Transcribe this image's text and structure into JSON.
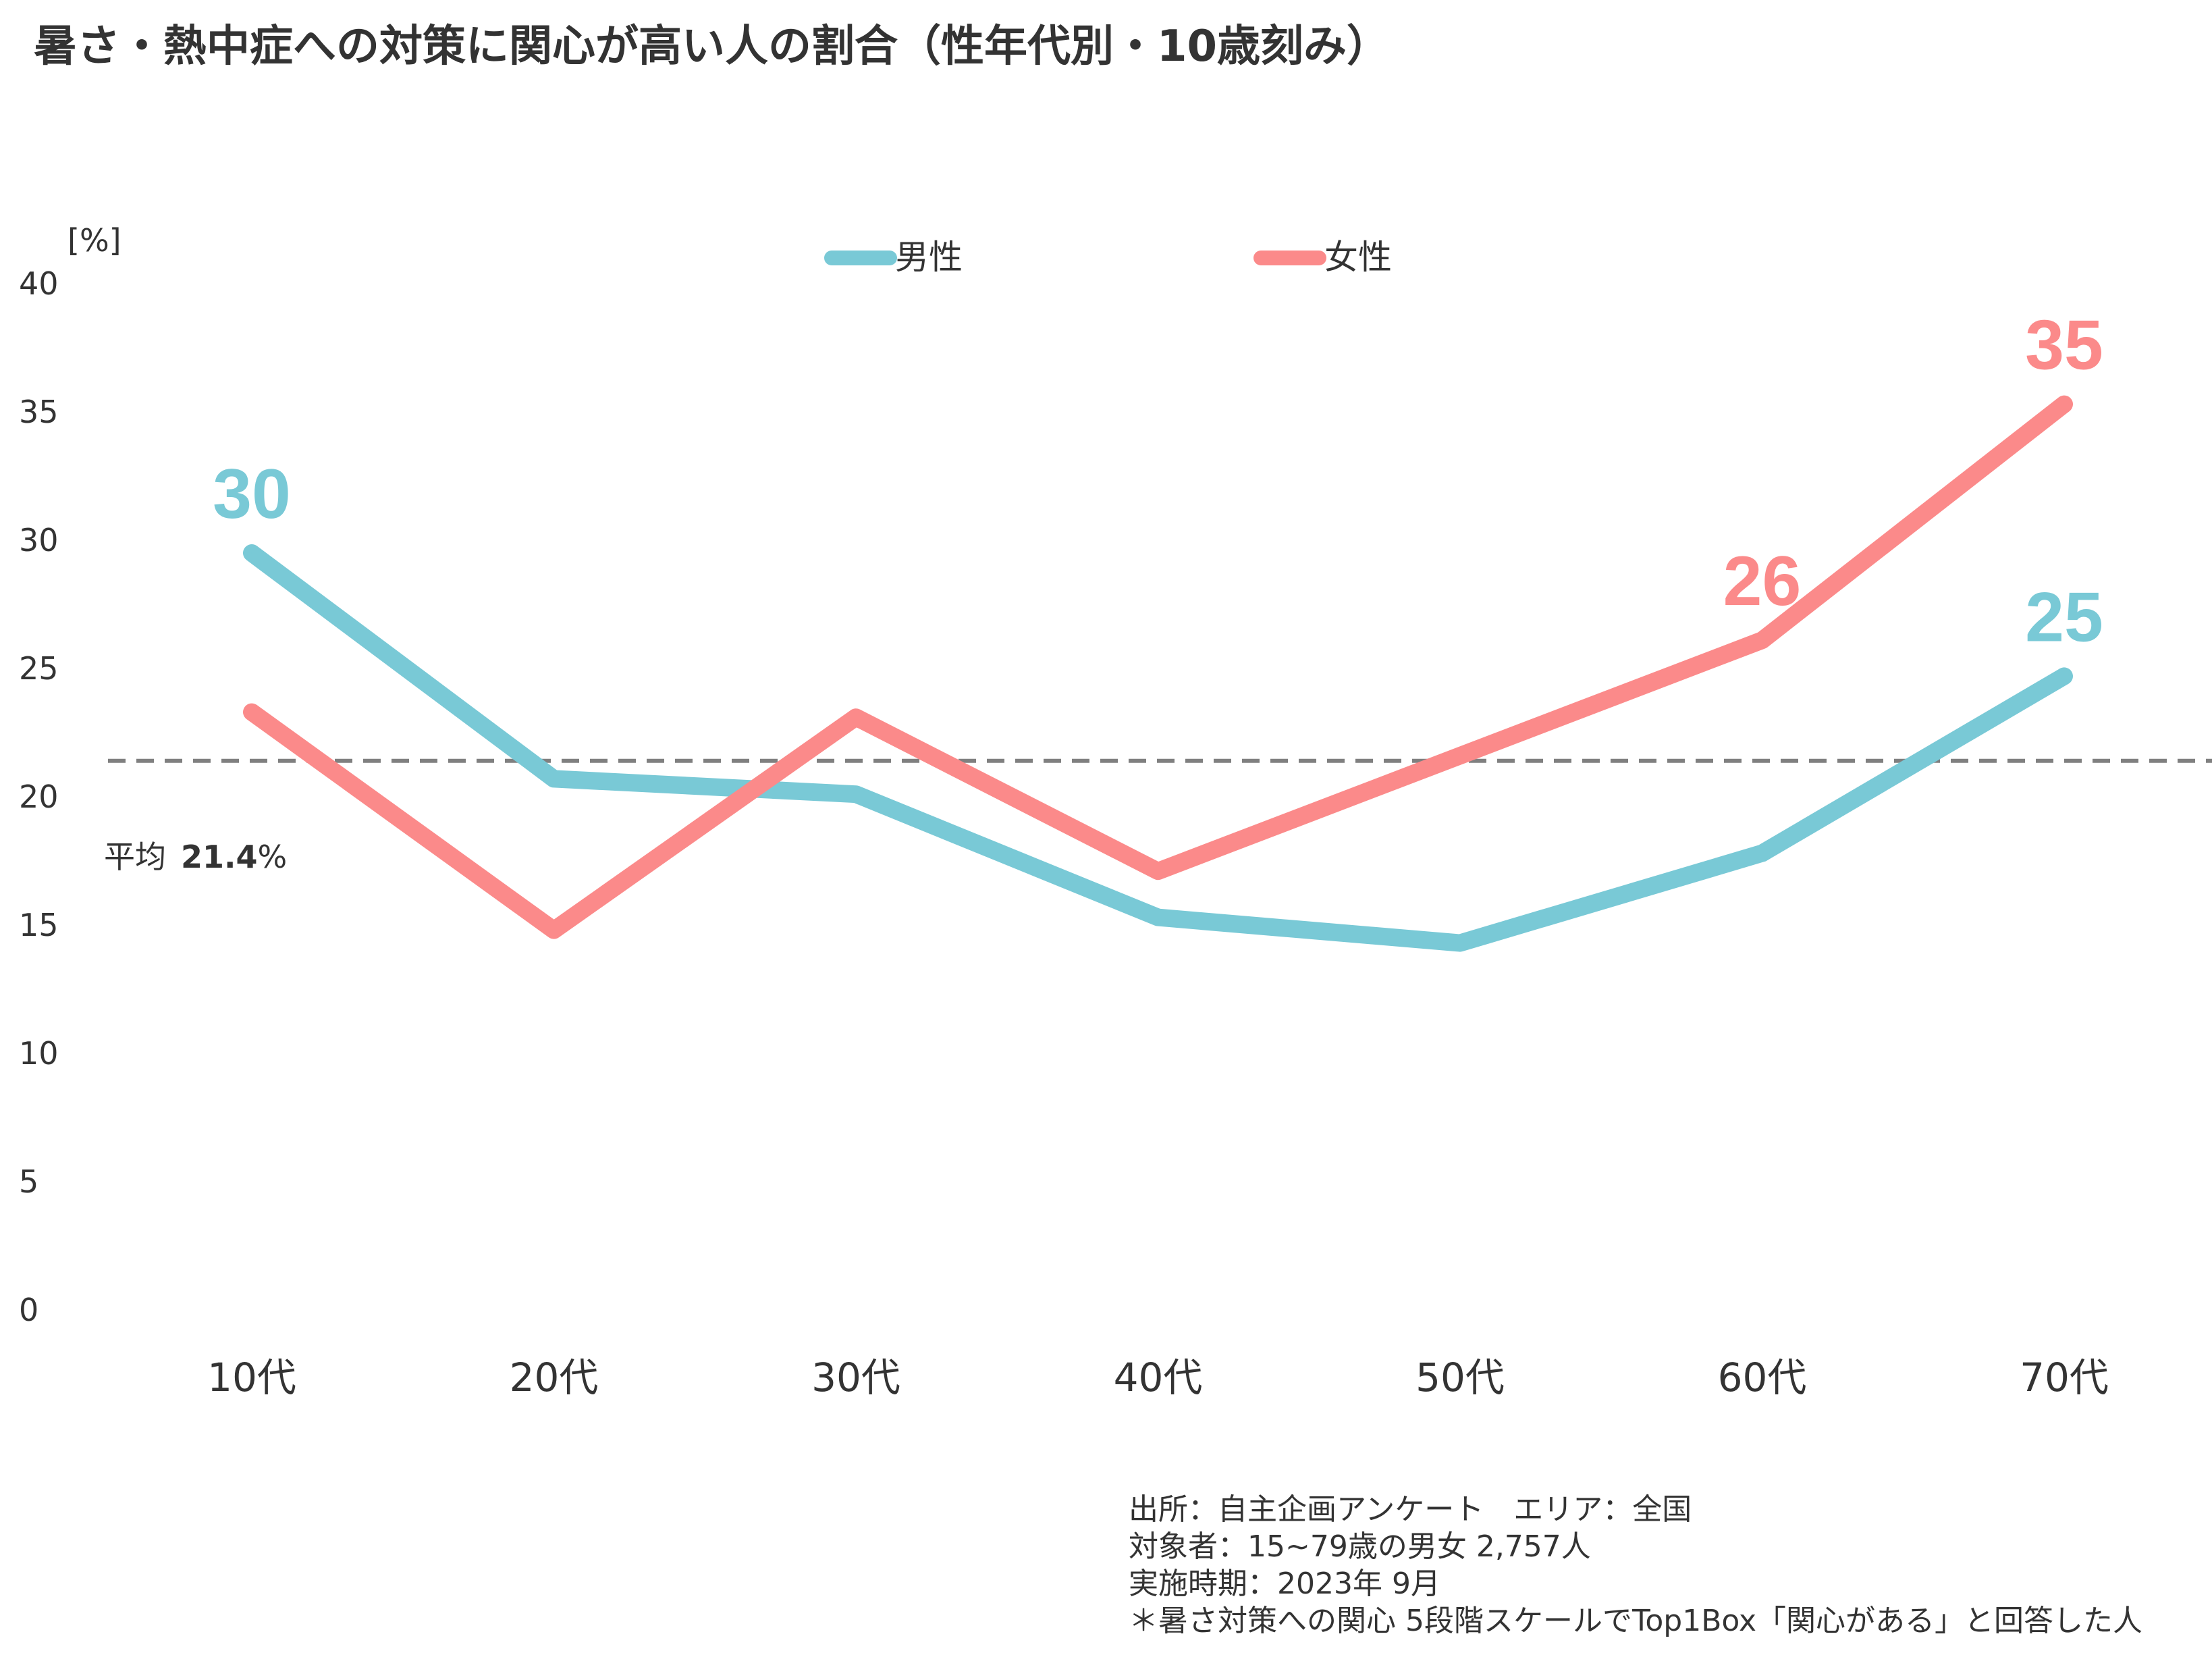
{
  "chart_data": {
    "type": "line",
    "title": "暑さ・熱中症への対策に関心が高い人の割合（性年代別・10歳刻み）",
    "ylabel": "[%]",
    "ylim": [
      0,
      40
    ],
    "yticks": [
      "0",
      "5",
      "10",
      "15",
      "20",
      "25",
      "30",
      "35",
      "40"
    ],
    "categories": [
      "10代",
      "20代",
      "30代",
      "40代",
      "50代",
      "60代",
      "70代"
    ],
    "series": [
      {
        "name": "男性",
        "color": "#79c9d6",
        "values": [
          29.5,
          20.7,
          20.1,
          15.3,
          14.3,
          17.8,
          24.7
        ],
        "labels": [
          "30",
          "",
          "",
          "",
          "",
          "",
          "25"
        ]
      },
      {
        "name": "女性",
        "color": "#fb8a8a",
        "values": [
          23.3,
          14.8,
          23.1,
          17.1,
          21.6,
          26.1,
          35.3
        ],
        "labels": [
          "",
          "",
          "",
          "",
          "",
          "26",
          "35"
        ]
      }
    ],
    "average": {
      "label": "平均",
      "value": "21.4",
      "unit": "%",
      "y": 21.4,
      "color": "#808080"
    },
    "legend_position": "top-center",
    "grid": false
  },
  "notes": {
    "source": "出所：自主企画アンケート　エリア：全国",
    "target": "対象者：15~79歳の男女 2,757人",
    "period": "実施時期：2023年 9月",
    "footnote": "＊暑さ対策への関心 5段階スケールでTop1Box「関心がある」と回答した人"
  }
}
